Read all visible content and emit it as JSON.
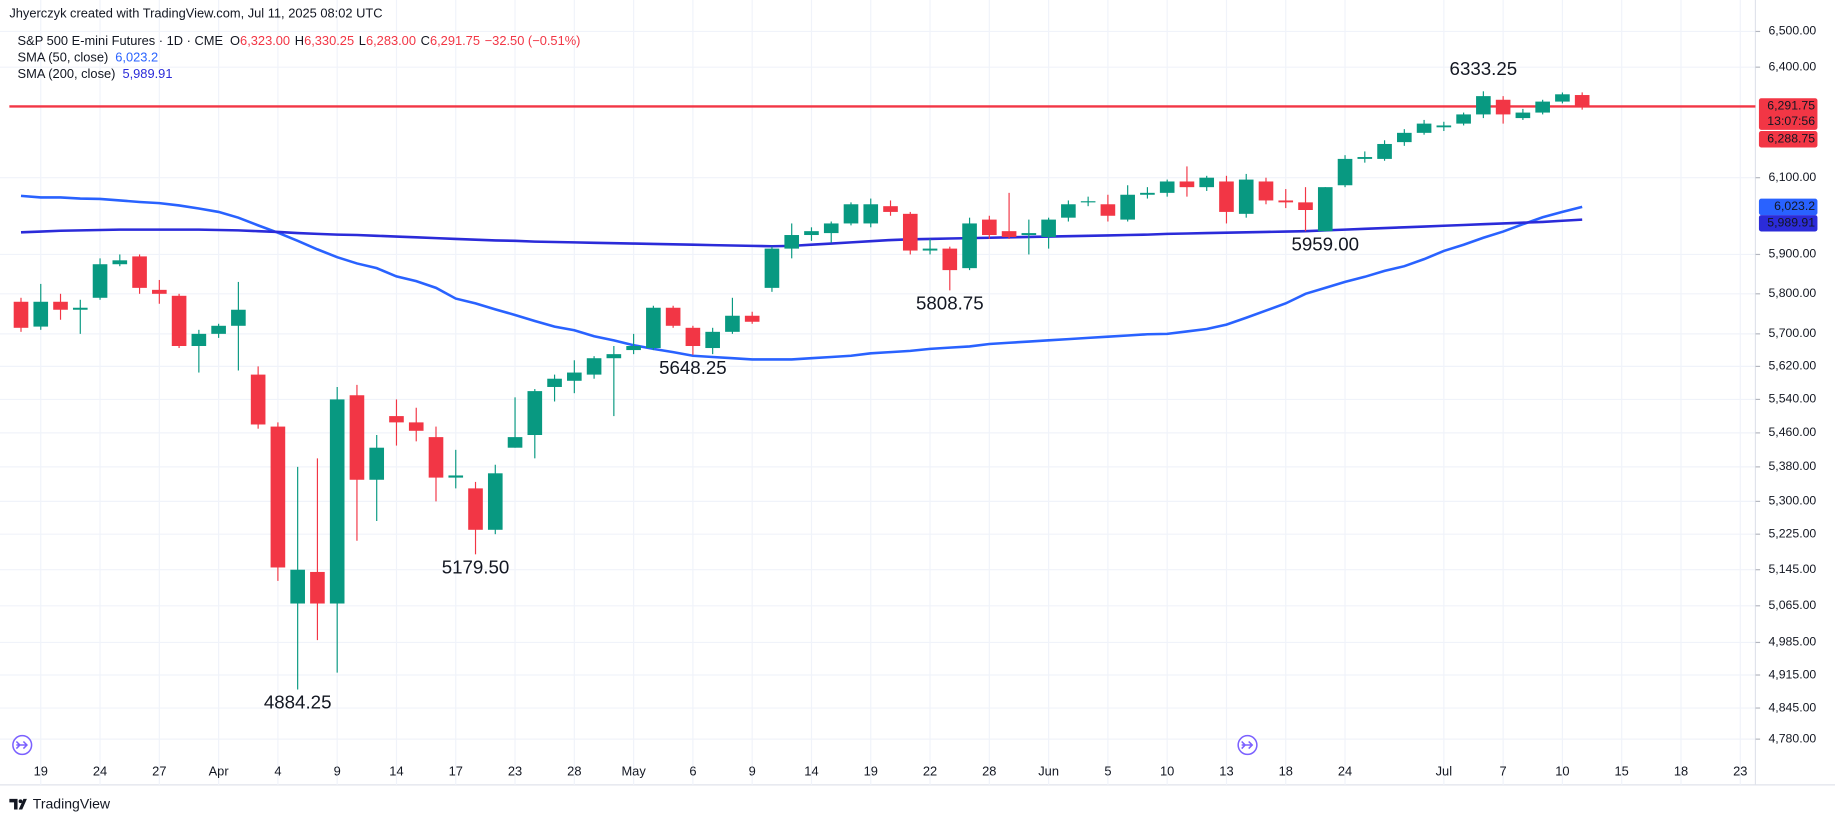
{
  "chart_data": {
    "type": "candlestick",
    "created_by": "Jhyerczyk created with TradingView.com, Jul 11, 2025 08:02 UTC",
    "title": "S&P 500 E-mini Futures · 1D · CME",
    "ohlc_header": [
      {
        "key": "O",
        "value": "6,323.00"
      },
      {
        "key": "H",
        "value": "6,330.25"
      },
      {
        "key": "L",
        "value": "6,283.00"
      },
      {
        "key": "C",
        "value": "6,291.75"
      }
    ],
    "change": "−32.50 (−0.51%)",
    "footer": "TradingView",
    "log_scale": true,
    "grid": true,
    "up_color": "#089981",
    "down_color": "#f23645",
    "ylim": [
      4746,
      6556
    ],
    "yticks": [
      {
        "value": 4780,
        "label": "4,780.00"
      },
      {
        "value": 4845,
        "label": "4,845.00"
      },
      {
        "value": 4915,
        "label": "4,915.00"
      },
      {
        "value": 4985,
        "label": "4,985.00"
      },
      {
        "value": 5065,
        "label": "5,065.00"
      },
      {
        "value": 5145,
        "label": "5,145.00"
      },
      {
        "value": 5225,
        "label": "5,225.00"
      },
      {
        "value": 5300,
        "label": "5,300.00"
      },
      {
        "value": 5380,
        "label": "5,380.00"
      },
      {
        "value": 5460,
        "label": "5,460.00"
      },
      {
        "value": 5540,
        "label": "5,540.00"
      },
      {
        "value": 5620,
        "label": "5,620.00"
      },
      {
        "value": 5700,
        "label": "5,700.00"
      },
      {
        "value": 5800,
        "label": "5,800.00"
      },
      {
        "value": 5900,
        "label": "5,900.00"
      },
      {
        "value": 6100,
        "label": "6,100.00"
      },
      {
        "value": 6400,
        "label": "6,400.00"
      },
      {
        "value": 6500,
        "label": "6,500.00"
      }
    ],
    "categories": [
      null,
      "19",
      null,
      null,
      "24",
      null,
      null,
      "27",
      null,
      null,
      "Apr",
      null,
      null,
      "4",
      null,
      null,
      "9",
      null,
      null,
      "14",
      null,
      null,
      "17",
      null,
      null,
      "23",
      null,
      null,
      "28",
      null,
      null,
      "May",
      null,
      null,
      "6",
      null,
      null,
      "9",
      null,
      null,
      "14",
      null,
      null,
      "19",
      null,
      null,
      "22",
      null,
      null,
      "28",
      null,
      null,
      "Jun",
      null,
      null,
      "5",
      null,
      null,
      "10",
      null,
      null,
      "13",
      null,
      null,
      "18",
      null,
      null,
      "24",
      null,
      null,
      null,
      null,
      "Jul",
      null,
      null,
      "7",
      null,
      null,
      "10",
      null,
      null,
      "15",
      null,
      null,
      "18",
      null,
      null,
      "23"
    ],
    "open": [
      5780,
      5718,
      5780,
      5760,
      5790,
      5875,
      5895,
      5810,
      5795,
      5670,
      5700,
      5720,
      5600,
      5475,
      5070,
      5140,
      5070,
      5550,
      5350,
      5500,
      5485,
      5450,
      5355,
      5330,
      5235,
      5425,
      5455,
      5570,
      5585,
      5600,
      5640,
      5660,
      5665,
      5765,
      5715,
      5665,
      5705,
      5745,
      5815,
      5915,
      5950,
      5955,
      5980,
      5980,
      6025,
      6005,
      5910,
      5915,
      5865,
      5990,
      5960,
      5950,
      5945,
      5995,
      6035,
      6030,
      5990,
      6055,
      6060,
      6090,
      6075,
      6090,
      6005,
      6090,
      6040,
      6035,
      5960,
      6080,
      6150,
      6150,
      6195,
      6220,
      6235,
      6245,
      6270,
      6310,
      6260,
      6275,
      6305,
      6323,
      null,
      null,
      null,
      null,
      null,
      null,
      null,
      null
    ],
    "high": [
      5790,
      5825,
      5800,
      5785,
      5890,
      5900,
      5900,
      5835,
      5800,
      5710,
      5725,
      5830,
      5620,
      5485,
      5380,
      5400,
      5570,
      5575,
      5455,
      5540,
      5520,
      5475,
      5420,
      5345,
      5385,
      5545,
      5565,
      5600,
      5635,
      5645,
      5670,
      5700,
      5770,
      5770,
      5720,
      5715,
      5790,
      5755,
      5920,
      5980,
      5970,
      5985,
      6035,
      6045,
      6040,
      6010,
      5940,
      5920,
      5995,
      6000,
      6060,
      5990,
      5995,
      6040,
      6050,
      6055,
      6080,
      6075,
      6095,
      6130,
      6105,
      6105,
      6110,
      6100,
      6070,
      6075,
      6075,
      6160,
      6170,
      6200,
      6230,
      6255,
      6250,
      6275,
      6333.25,
      6320,
      6285,
      6310,
      6330,
      6330.25,
      null,
      null,
      null,
      null,
      null,
      null,
      null,
      null
    ],
    "low": [
      5705,
      5710,
      5735,
      5700,
      5785,
      5870,
      5800,
      5775,
      5665,
      5605,
      5690,
      5610,
      5470,
      5120,
      4884.25,
      4990,
      4920,
      5210,
      5255,
      5430,
      5440,
      5300,
      5330,
      5179.5,
      5225,
      5425,
      5400,
      5535,
      5555,
      5590,
      5500,
      5650,
      5660,
      5715,
      5648.25,
      5650,
      5700,
      5725,
      5805,
      5890,
      5935,
      5930,
      5975,
      5970,
      6000,
      5900,
      5900,
      5808.75,
      5860,
      5940,
      5940,
      5900,
      5915,
      5985,
      6025,
      5985,
      5985,
      6045,
      6050,
      6050,
      6065,
      5980,
      5995,
      6030,
      6020,
      5960,
      5959,
      6075,
      6140,
      6145,
      6185,
      6215,
      6225,
      6240,
      6260,
      6245,
      6255,
      6270,
      6300,
      6283,
      null,
      null,
      null,
      null,
      null,
      null,
      null,
      null
    ],
    "close": [
      5715,
      5780,
      5760,
      5765,
      5875,
      5885,
      5815,
      5800,
      5670,
      5700,
      5720,
      5760,
      5480,
      5150,
      5145,
      5070,
      5540,
      5350,
      5425,
      5485,
      5465,
      5355,
      5360,
      5235,
      5365,
      5450,
      5560,
      5590,
      5605,
      5640,
      5650,
      5670,
      5765,
      5720,
      5670,
      5705,
      5745,
      5730,
      5915,
      5950,
      5960,
      5980,
      6030,
      6030,
      6010,
      5910,
      5915,
      5860,
      5980,
      5950,
      5945,
      5955,
      5990,
      6030,
      6038,
      6000,
      6055,
      6060,
      6090,
      6075,
      6100,
      6010,
      6095,
      6040,
      6035,
      6015,
      6075,
      6150,
      6155,
      6190,
      6220,
      6245,
      6240,
      6270,
      6320,
      6270,
      6275,
      6305,
      6325,
      6291.75,
      null,
      null,
      null,
      null,
      null,
      null,
      null,
      null
    ],
    "low_value_labels": [
      null,
      null,
      null,
      null,
      null,
      null,
      null,
      null,
      null,
      null,
      null,
      null,
      null,
      null,
      "4884.25",
      null,
      null,
      null,
      null,
      null,
      null,
      null,
      null,
      "5179.50",
      null,
      null,
      null,
      null,
      null,
      null,
      null,
      null,
      null,
      null,
      "5648.25",
      null,
      null,
      null,
      null,
      null,
      null,
      null,
      null,
      null,
      null,
      null,
      null,
      "5808.75",
      null,
      null,
      null,
      null,
      null,
      null,
      null,
      null,
      null,
      null,
      null,
      null,
      null,
      null,
      null,
      null,
      null,
      null,
      "5959.00",
      null,
      null,
      null,
      null,
      null,
      null,
      null,
      null,
      null,
      null,
      null,
      null,
      null,
      null,
      null,
      null,
      null,
      null,
      null,
      null,
      null
    ],
    "high_value_labels": [
      null,
      null,
      null,
      null,
      null,
      null,
      null,
      null,
      null,
      null,
      null,
      null,
      null,
      null,
      null,
      null,
      null,
      null,
      null,
      null,
      null,
      null,
      null,
      null,
      null,
      null,
      null,
      null,
      null,
      null,
      null,
      null,
      null,
      null,
      null,
      null,
      null,
      null,
      null,
      null,
      null,
      null,
      null,
      null,
      null,
      null,
      null,
      null,
      null,
      null,
      null,
      null,
      null,
      null,
      null,
      null,
      null,
      null,
      null,
      null,
      null,
      null,
      null,
      null,
      null,
      null,
      null,
      null,
      null,
      null,
      null,
      null,
      null,
      null,
      "6333.25",
      null,
      null,
      null,
      null,
      null,
      null,
      null,
      null,
      null,
      null,
      null,
      null,
      null
    ],
    "sma": [
      {
        "name": "SMA (50, close)",
        "color": "#2962ff",
        "value_label": "6,023.2",
        "values": [
          6052,
          6048,
          6048,
          6045,
          6044,
          6040,
          6036,
          6033,
          6027,
          6019,
          6010,
          5995,
          5975,
          5956,
          5935,
          5913,
          5893,
          5877,
          5865,
          5844,
          5832,
          5815,
          5788,
          5776,
          5761,
          5747,
          5732,
          5718,
          5709,
          5694,
          5684,
          5672,
          5663,
          5655,
          5646,
          5643,
          5640,
          5637,
          5637,
          5637,
          5640,
          5643,
          5646,
          5652,
          5655,
          5658,
          5663,
          5666,
          5669,
          5675,
          5678,
          5681,
          5684,
          5687,
          5690,
          5693,
          5696,
          5699,
          5700,
          5706,
          5712,
          5723,
          5740,
          5758,
          5776,
          5800,
          5815,
          5830,
          5843,
          5858,
          5870,
          5888,
          5909,
          5925,
          5943,
          5959,
          5978,
          5996,
          6010,
          6023.2,
          null,
          null,
          null,
          null,
          null,
          null,
          null,
          null
        ]
      },
      {
        "name": "SMA (200, close)",
        "color": "#2b2bd9",
        "value_label": "5,989.91",
        "values": [
          5957,
          5959,
          5961,
          5962,
          5963,
          5964,
          5964,
          5964,
          5964,
          5964,
          5963,
          5962,
          5960,
          5958,
          5955,
          5953,
          5951,
          5950,
          5948,
          5946,
          5944,
          5942,
          5940,
          5938,
          5936,
          5935,
          5933,
          5932,
          5931,
          5930,
          5929,
          5928,
          5927,
          5926,
          5925,
          5924,
          5923,
          5922,
          5921,
          5922,
          5925,
          5928,
          5931,
          5934,
          5937,
          5939,
          5940,
          5941,
          5942,
          5943,
          5944,
          5945,
          5946,
          5947,
          5948,
          5949,
          5950,
          5951,
          5953,
          5954,
          5955,
          5956,
          5957,
          5958,
          5959,
          5960,
          5962,
          5964,
          5966,
          5968,
          5970,
          5972,
          5974,
          5976,
          5978,
          5980,
          5982,
          5984,
          5987,
          5989.91,
          null,
          null,
          null,
          null,
          null,
          null,
          null,
          null
        ]
      }
    ],
    "price_line": {
      "value": 6291.75,
      "label": "6,291.75",
      "color": "#f23645"
    },
    "countdown": "13:07:56",
    "second_price_tag": "6,288.75"
  }
}
